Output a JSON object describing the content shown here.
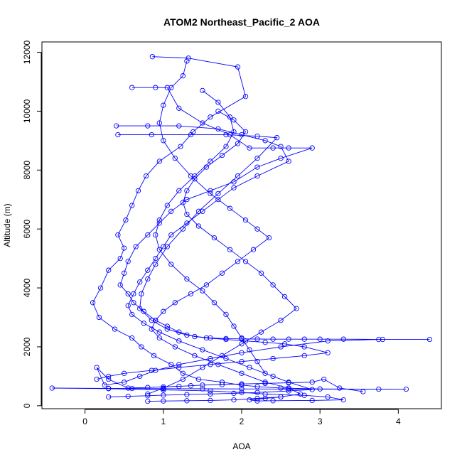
{
  "chart_data": {
    "type": "scatter",
    "title": "ATOM2 Northeast_Pacific_2 AOA",
    "xlabel": "AOA",
    "ylabel": "Altitude (m)",
    "xlim": [
      -0.55,
      4.55
    ],
    "ylim": [
      -100,
      12350
    ],
    "x_ticks": [
      0,
      1,
      2,
      3,
      4
    ],
    "y_ticks": [
      0,
      2000,
      4000,
      6000,
      8000,
      10000,
      12000
    ],
    "grid": false,
    "legend": "none",
    "marker": "open-circle",
    "connect_points": true,
    "color": "#0000ff",
    "series": [
      {
        "x": [
          0.86,
          1.32,
          1.95,
          2.05,
          1.6,
          1.38,
          1.22,
          0.95,
          0.78,
          0.68,
          0.6,
          0.52,
          0.42,
          0.5,
          0.45,
          0.3,
          0.2,
          0.1,
          0.18,
          0.38,
          0.6,
          0.72,
          0.88,
          1.1,
          1.25,
          1.45,
          1.75,
          2.0,
          2.2,
          2.5,
          3.0,
          4.1,
          3.75,
          2.6,
          2.0,
          1.5,
          1.0,
          0.6,
          0.3,
          -0.42,
          0.3,
          1.0,
          1.6,
          2.0,
          2.3,
          2.8,
          3.1,
          3.3,
          2.9,
          2.4,
          2.2,
          2.1,
          2.3,
          2.5
        ],
        "y": [
          11850,
          11800,
          11500,
          10500,
          9800,
          9300,
          8800,
          8300,
          7800,
          7300,
          6800,
          6300,
          5800,
          5350,
          5000,
          4600,
          4000,
          3500,
          3000,
          2600,
          2300,
          2000,
          1700,
          1400,
          1100,
          900,
          800,
          700,
          650,
          600,
          570,
          560,
          560,
          565,
          570,
          575,
          580,
          585,
          590,
          600,
          580,
          540,
          500,
          450,
          400,
          350,
          300,
          200,
          180,
          170,
          160,
          200,
          250,
          300
        ]
      },
      {
        "x": [
          0.6,
          0.9,
          1.05,
          1.2,
          1.5,
          1.85,
          2.1,
          2.4,
          2.6,
          2.9,
          2.5,
          2.2,
          1.9,
          1.6,
          1.3,
          1.1,
          0.95,
          0.8,
          0.65,
          0.55,
          0.5,
          0.45,
          0.55,
          0.62,
          0.75,
          0.9,
          1.05,
          1.2,
          1.4,
          1.6,
          1.8,
          2.0,
          2.2,
          2.4,
          2.6,
          2.8,
          3.0,
          3.3,
          3.8,
          4.4,
          3.75,
          3.1,
          2.5,
          2.0,
          1.6,
          1.2,
          0.9,
          0.7,
          0.5,
          0.25,
          0.15,
          0.3,
          0.55,
          0.8,
          1.0,
          1.2,
          1.35,
          1.5,
          1.75,
          2.0,
          2.3,
          2.6,
          2.9,
          3.05,
          3.25,
          3.55
        ],
        "y": [
          10800,
          10800,
          10800,
          10100,
          9600,
          9200,
          8750,
          8750,
          8750,
          8750,
          8400,
          8100,
          7600,
          7300,
          7000,
          6600,
          6200,
          5800,
          5400,
          4900,
          4500,
          4100,
          3800,
          3500,
          3200,
          2900,
          2700,
          2500,
          2350,
          2300,
          2280,
          2270,
          2265,
          2260,
          2260,
          2260,
          2260,
          2260,
          2250,
          2250,
          2250,
          2200,
          2000,
          1800,
          1600,
          1400,
          1200,
          1000,
          800,
          700,
          1300,
          900,
          600,
          620,
          640,
          660,
          680,
          700,
          720,
          740,
          760,
          780,
          800,
          900,
          600,
          480
        ]
      },
      {
        "x": [
          0.4,
          0.8,
          1.2,
          1.7,
          2.0,
          2.3,
          2.5,
          2.6,
          2.2,
          1.9,
          1.7,
          1.5,
          1.3,
          1.1,
          1.0,
          0.9,
          0.8,
          0.7,
          0.62,
          0.55,
          0.6,
          0.75,
          0.95,
          1.2,
          1.5,
          1.8,
          2.1,
          2.4,
          2.6,
          2.9,
          2.6,
          2.2,
          1.9,
          1.6,
          1.3,
          1.0,
          0.8,
          0.55,
          0.3
        ],
        "y": [
          9500,
          9500,
          9500,
          9400,
          9200,
          9000,
          8800,
          8300,
          7800,
          7400,
          7000,
          6600,
          6200,
          5800,
          5400,
          5000,
          4600,
          4200,
          3800,
          3400,
          3100,
          2800,
          2500,
          2200,
          1900,
          1600,
          1300,
          1000,
          800,
          550,
          500,
          450,
          420,
          400,
          380,
          360,
          340,
          320,
          300
        ]
      },
      {
        "x": [
          0.42,
          0.85,
          1.35,
          1.8,
          2.2,
          2.45,
          2.2,
          1.95,
          1.7,
          1.45,
          1.25,
          1.05,
          0.9,
          0.8,
          0.72,
          0.7,
          0.85,
          1.05,
          1.3,
          1.55,
          1.8,
          2.05,
          2.3,
          2.55,
          2.8,
          3.1,
          2.8,
          2.4,
          2.0,
          1.6,
          1.2,
          0.85,
          0.5,
          0.3,
          0.15
        ],
        "y": [
          9200,
          9200,
          9200,
          9200,
          9150,
          9100,
          8400,
          7800,
          7200,
          6600,
          6000,
          5400,
          4800,
          4300,
          3800,
          3300,
          2900,
          2600,
          2400,
          2300,
          2250,
          2200,
          2150,
          2100,
          2000,
          1800,
          1700,
          1600,
          1500,
          1400,
          1300,
          1200,
          1100,
          1000,
          900
        ]
      },
      {
        "x": [
          1.3,
          1.25,
          1.1,
          1.0,
          0.95,
          1.0,
          1.15,
          1.35,
          1.6,
          1.85,
          2.05,
          2.2,
          2.35,
          2.15,
          1.95,
          1.75,
          1.55,
          1.35,
          1.15,
          1.0,
          0.9,
          0.85,
          0.95,
          1.15,
          1.4,
          1.7,
          2.0,
          2.3,
          2.6,
          2.75,
          2.5,
          2.2,
          1.9,
          1.6,
          1.3,
          1.0,
          0.8
        ],
        "y": [
          11700,
          11200,
          10800,
          10200,
          9600,
          9000,
          8400,
          7800,
          7200,
          6700,
          6300,
          6000,
          5700,
          5300,
          4900,
          4500,
          4100,
          3800,
          3500,
          3200,
          2900,
          2600,
          2300,
          2000,
          1700,
          1400,
          1100,
          800,
          600,
          400,
          300,
          250,
          200,
          180,
          170,
          160,
          150
        ]
      },
      {
        "x": [
          1.7,
          1.9,
          2.05,
          1.95,
          1.75,
          1.55,
          1.4,
          1.3,
          1.25,
          1.3,
          1.45,
          1.65,
          1.85,
          2.05,
          2.25,
          2.4,
          2.55,
          2.7,
          2.5,
          2.25,
          2.0,
          1.75,
          1.5,
          1.25,
          1.0,
          0.8
        ],
        "y": [
          10000,
          9700,
          9300,
          8900,
          8500,
          8100,
          7700,
          7300,
          6900,
          6500,
          6100,
          5700,
          5300,
          4900,
          4500,
          4100,
          3700,
          3300,
          2900,
          2500,
          2100,
          1700,
          1300,
          900,
          600,
          400
        ]
      },
      {
        "x": [
          1.5,
          1.7,
          1.85,
          1.9,
          1.8,
          1.6,
          1.4,
          1.2,
          1.05,
          0.95,
          0.9,
          0.95,
          1.1,
          1.3,
          1.5,
          1.65,
          1.8,
          1.9,
          2.0,
          2.1,
          2.2,
          2.3
        ],
        "y": [
          10700,
          10300,
          9800,
          9300,
          8800,
          8300,
          7800,
          7300,
          6800,
          6300,
          5800,
          5300,
          4800,
          4300,
          3900,
          3500,
          3100,
          2700,
          2300,
          1900,
          1500,
          1100
        ]
      }
    ]
  }
}
